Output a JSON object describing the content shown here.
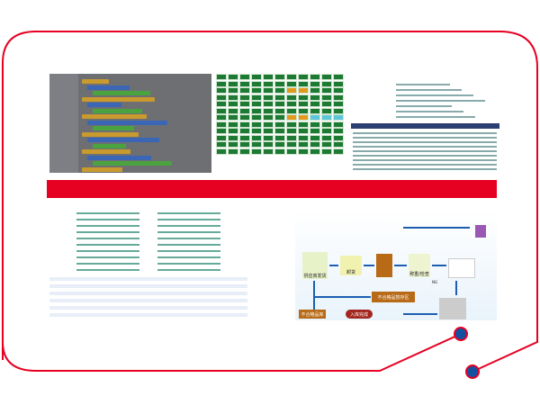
{
  "colors": {
    "frame": "#e60022",
    "dot": "#1450a0",
    "band": "#e60022"
  },
  "flowchart": {
    "supplier": "供应商发货",
    "unload": "卸货",
    "check": "称重/检查",
    "ng": "NG",
    "reject_area": "不合格品暂存区",
    "reject_store": "不合格品库",
    "done": "入库完成"
  }
}
